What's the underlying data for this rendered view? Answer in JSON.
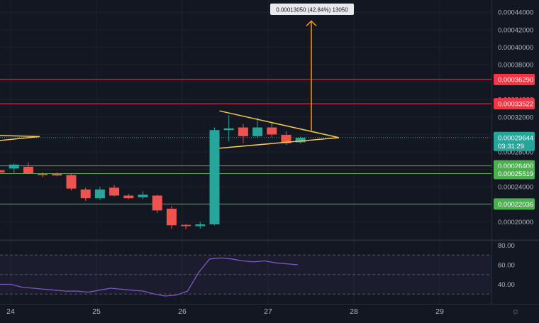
{
  "chart_data": [
    {
      "type": "candlestick",
      "title": "",
      "x_ticks": [
        "24",
        "25",
        "26",
        "27",
        "28",
        "29"
      ],
      "y_ticks": [
        "0.00020000",
        "0.00022000",
        "0.00024000",
        "0.00026000",
        "0.00028000",
        "0.00030000",
        "0.00032000",
        "0.00034000",
        "0.00036000",
        "0.00038000",
        "0.00040000",
        "0.00042000",
        "0.00044000"
      ],
      "ylim": [
        0.00018,
        0.000454
      ],
      "candles": [
        {
          "o": 0.000259,
          "h": 0.0002628,
          "l": 0.0002553,
          "c": 0.0002565
        },
        {
          "o": 0.000261,
          "h": 0.0002665,
          "l": 0.000256,
          "c": 0.0002655
        },
        {
          "o": 0.000263,
          "h": 0.000268,
          "l": 0.0002545,
          "c": 0.0002555
        },
        {
          "o": 0.0002548,
          "h": 0.0002568,
          "l": 0.000251,
          "c": 0.0002535
        },
        {
          "o": 0.0002548,
          "h": 0.0002568,
          "l": 0.000252,
          "c": 0.000253
        },
        {
          "o": 0.0002535,
          "h": 0.0002555,
          "l": 0.000236,
          "c": 0.000238
        },
        {
          "o": 0.000237,
          "h": 0.000239,
          "l": 0.000224,
          "c": 0.000227
        },
        {
          "o": 0.000227,
          "h": 0.00024,
          "l": 0.000225,
          "c": 0.000237
        },
        {
          "o": 0.000239,
          "h": 0.000242,
          "l": 0.000229,
          "c": 0.00023
        },
        {
          "o": 0.00023,
          "h": 0.000232,
          "l": 0.000226,
          "c": 0.000227
        },
        {
          "o": 0.000228,
          "h": 0.000235,
          "l": 0.000226,
          "c": 0.000231
        },
        {
          "o": 0.00023,
          "h": 0.000231,
          "l": 0.00021,
          "c": 0.000213
        },
        {
          "o": 0.000215,
          "h": 0.000218,
          "l": 0.000192,
          "c": 0.000196
        },
        {
          "o": 0.0001965,
          "h": 0.0001975,
          "l": 0.0001915,
          "c": 0.000195
        },
        {
          "o": 0.000195,
          "h": 0.0002,
          "l": 0.000192,
          "c": 0.000197
        },
        {
          "o": 0.000197,
          "h": 0.000308,
          "l": 0.000196,
          "c": 0.000305
        },
        {
          "o": 0.000305,
          "h": 0.000322,
          "l": 0.000292,
          "c": 0.000307
        },
        {
          "o": 0.000308,
          "h": 0.000312,
          "l": 0.00029,
          "c": 0.000298
        },
        {
          "o": 0.000298,
          "h": 0.000319,
          "l": 0.000296,
          "c": 0.000308
        },
        {
          "o": 0.000308,
          "h": 0.000313,
          "l": 0.000297,
          "c": 0.0003
        },
        {
          "o": 0.0002995,
          "h": 0.0003035,
          "l": 0.000288,
          "c": 0.00029
        },
        {
          "o": 0.000291,
          "h": 0.0002975,
          "l": 0.0002898,
          "c": 0.0002962
        }
      ],
      "horizontal_levels": [
        {
          "price": 0.0003629,
          "label": "0.00036290",
          "color": "#f23645"
        },
        {
          "price": 0.00033522,
          "label": "0.00033522",
          "color": "#f23645"
        },
        {
          "price": 0.000264,
          "label": "0.00026400",
          "color": "#4caf50"
        },
        {
          "price": 0.00025519,
          "label": "0.00025519",
          "color": "#4caf50"
        },
        {
          "price": 0.00022036,
          "label": "0.00022036",
          "color": "#4caf50"
        }
      ],
      "current_price": {
        "label": "0.00029644",
        "countdown": "03:31:29",
        "price": 0.00029644,
        "color": "#26a69a"
      },
      "triangle": {
        "top": 0.000327,
        "bottom": 0.0002843,
        "apex": 0.0002964,
        "color": "#f2c94c"
      },
      "target": {
        "from": 0.0002964,
        "to": 0.00043,
        "label": "0.00013050 (42.84%) 13050",
        "color": "#ff9800"
      }
    },
    {
      "type": "line",
      "name": "RSI",
      "y_ticks": [
        "40.00",
        "60.00",
        "80.00"
      ],
      "ylim": [
        20,
        84
      ],
      "bands": [
        30,
        50,
        70
      ],
      "values": [
        40,
        40,
        37,
        36,
        35,
        34,
        33,
        33,
        32,
        34,
        36,
        35,
        34,
        33,
        30,
        28,
        29,
        33,
        52,
        66,
        67,
        66,
        64,
        63,
        64,
        62,
        61,
        60
      ]
    }
  ]
}
